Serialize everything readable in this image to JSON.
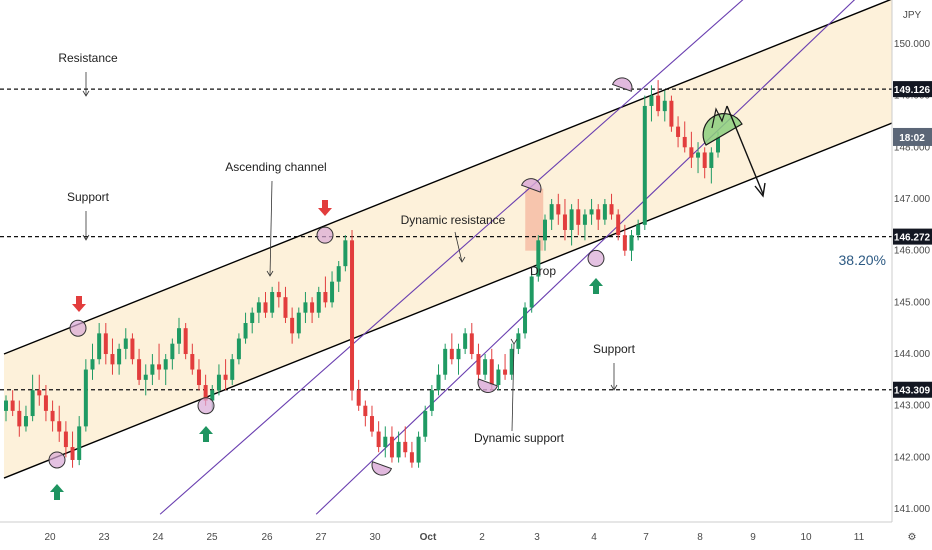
{
  "chart_data": {
    "type": "candlestick",
    "currency": "JPY",
    "x_ticks": [
      "20",
      "23",
      "24",
      "25",
      "26",
      "27",
      "30",
      "Oct",
      "2",
      "3",
      "4",
      "7",
      "8",
      "9",
      "10",
      "11"
    ],
    "y_ticks": [
      "150.000",
      "149.000",
      "148.000",
      "147.000",
      "146.000",
      "145.000",
      "144.000",
      "143.000",
      "142.000",
      "141.000"
    ],
    "ylim": [
      140.75,
      150.85
    ],
    "price_levels": [
      {
        "value": 149.126,
        "label": "149.126",
        "style": "dashed"
      },
      {
        "value": 146.272,
        "label": "146.272",
        "style": "dashed"
      },
      {
        "value": 143.309,
        "label": "143.309",
        "style": "dashed"
      }
    ],
    "current_time_tag": "18:02",
    "current_price": 148.2,
    "fib_label": "38.20%",
    "annotations": [
      "Resistance",
      "Support",
      "Ascending channel",
      "Dynamic resistance",
      "Drop",
      "Support",
      "Dynamic support"
    ],
    "channel": {
      "upper_start": [
        0,
        144.0
      ],
      "upper_end": [
        16,
        150.9
      ],
      "lower_start": [
        0,
        141.6
      ],
      "lower_end": [
        16,
        148.5
      ]
    },
    "dynamic_lines": {
      "resistance_start": [
        2.8,
        140.9
      ],
      "resistance_end": [
        13.3,
        150.9
      ],
      "support_start": [
        5.6,
        140.9
      ],
      "support_end": [
        15.3,
        150.9
      ]
    },
    "candles": [
      [
        142.9,
        143.2,
        142.7,
        143.1
      ],
      [
        143.1,
        143.3,
        142.8,
        142.9
      ],
      [
        142.9,
        143.1,
        142.4,
        142.6
      ],
      [
        142.6,
        143.0,
        142.5,
        142.8
      ],
      [
        142.8,
        143.6,
        142.7,
        143.3
      ],
      [
        143.3,
        143.6,
        143.0,
        143.2
      ],
      [
        143.2,
        143.4,
        142.7,
        142.9
      ],
      [
        142.9,
        143.1,
        142.5,
        142.7
      ],
      [
        142.7,
        143.0,
        142.3,
        142.5
      ],
      [
        142.5,
        142.7,
        142.0,
        142.2
      ],
      [
        142.2,
        142.5,
        141.8,
        141.95
      ],
      [
        141.95,
        142.8,
        141.85,
        142.6
      ],
      [
        142.6,
        143.9,
        142.5,
        143.7
      ],
      [
        143.7,
        144.2,
        143.5,
        143.9
      ],
      [
        143.9,
        144.6,
        143.8,
        144.4
      ],
      [
        144.4,
        144.6,
        143.8,
        144.0
      ],
      [
        144.0,
        144.3,
        143.6,
        143.8
      ],
      [
        143.8,
        144.2,
        143.6,
        144.1
      ],
      [
        144.1,
        144.5,
        143.9,
        144.3
      ],
      [
        144.3,
        144.4,
        143.8,
        143.9
      ],
      [
        143.9,
        144.1,
        143.4,
        143.5
      ],
      [
        143.5,
        143.8,
        143.2,
        143.6
      ],
      [
        143.6,
        144.0,
        143.4,
        143.8
      ],
      [
        143.8,
        144.2,
        143.5,
        143.7
      ],
      [
        143.7,
        144.0,
        143.4,
        143.9
      ],
      [
        143.9,
        144.3,
        143.7,
        144.2
      ],
      [
        144.2,
        144.7,
        144.0,
        144.5
      ],
      [
        144.5,
        144.6,
        143.9,
        144.0
      ],
      [
        144.0,
        144.2,
        143.6,
        143.7
      ],
      [
        143.7,
        143.9,
        143.3,
        143.4
      ],
      [
        143.4,
        143.6,
        143.0,
        143.1
      ],
      [
        143.1,
        143.4,
        142.9,
        143.3
      ],
      [
        143.3,
        143.8,
        143.2,
        143.6
      ],
      [
        143.6,
        143.9,
        143.3,
        143.5
      ],
      [
        143.5,
        144.0,
        143.4,
        143.9
      ],
      [
        143.9,
        144.4,
        143.8,
        144.3
      ],
      [
        144.3,
        144.8,
        144.2,
        144.6
      ],
      [
        144.6,
        144.9,
        144.4,
        144.8
      ],
      [
        144.8,
        145.1,
        144.6,
        145.0
      ],
      [
        145.0,
        145.2,
        144.7,
        144.8
      ],
      [
        144.8,
        145.3,
        144.7,
        145.2
      ],
      [
        145.2,
        145.4,
        144.9,
        145.1
      ],
      [
        145.1,
        145.3,
        144.6,
        144.7
      ],
      [
        144.7,
        144.9,
        144.2,
        144.4
      ],
      [
        144.4,
        144.9,
        144.3,
        144.8
      ],
      [
        144.8,
        145.2,
        144.6,
        145.0
      ],
      [
        145.0,
        145.1,
        144.6,
        144.8
      ],
      [
        144.8,
        145.3,
        144.7,
        145.2
      ],
      [
        145.2,
        145.5,
        144.9,
        145.0
      ],
      [
        145.0,
        145.6,
        144.9,
        145.4
      ],
      [
        145.4,
        145.8,
        145.2,
        145.7
      ],
      [
        145.7,
        146.3,
        145.6,
        146.2
      ],
      [
        146.2,
        146.4,
        143.1,
        143.3
      ],
      [
        143.3,
        143.5,
        142.9,
        143.0
      ],
      [
        143.0,
        143.1,
        142.6,
        142.8
      ],
      [
        142.8,
        143.0,
        142.4,
        142.5
      ],
      [
        142.5,
        142.7,
        142.1,
        142.2
      ],
      [
        142.2,
        142.6,
        142.0,
        142.4
      ],
      [
        142.4,
        142.6,
        141.9,
        142.0
      ],
      [
        142.0,
        142.5,
        141.9,
        142.3
      ],
      [
        142.3,
        142.6,
        142.0,
        142.1
      ],
      [
        142.1,
        142.3,
        141.8,
        141.9
      ],
      [
        141.9,
        142.5,
        141.8,
        142.4
      ],
      [
        142.4,
        143.0,
        142.3,
        142.9
      ],
      [
        142.9,
        143.4,
        142.8,
        143.3
      ],
      [
        143.3,
        143.8,
        143.2,
        143.6
      ],
      [
        143.6,
        144.2,
        143.5,
        144.1
      ],
      [
        144.1,
        144.4,
        143.8,
        143.9
      ],
      [
        143.9,
        144.2,
        143.6,
        144.1
      ],
      [
        144.1,
        144.5,
        144.0,
        144.4
      ],
      [
        144.4,
        144.6,
        143.9,
        144.0
      ],
      [
        144.0,
        144.2,
        143.5,
        143.6
      ],
      [
        143.6,
        144.0,
        143.5,
        143.9
      ],
      [
        143.9,
        144.1,
        143.3,
        143.4
      ],
      [
        143.4,
        143.8,
        143.3,
        143.7
      ],
      [
        143.7,
        144.0,
        143.5,
        143.6
      ],
      [
        143.6,
        144.2,
        143.5,
        144.1
      ],
      [
        144.1,
        144.5,
        144.0,
        144.4
      ],
      [
        144.4,
        145.0,
        144.3,
        144.9
      ],
      [
        144.9,
        145.6,
        144.8,
        145.5
      ],
      [
        145.5,
        146.3,
        145.4,
        146.2
      ],
      [
        146.2,
        146.7,
        146.0,
        146.6
      ],
      [
        146.6,
        147.0,
        146.4,
        146.9
      ],
      [
        146.9,
        147.1,
        146.5,
        146.7
      ],
      [
        146.7,
        147.0,
        146.2,
        146.4
      ],
      [
        146.4,
        146.9,
        146.1,
        146.8
      ],
      [
        146.8,
        147.0,
        146.3,
        146.5
      ],
      [
        146.5,
        146.8,
        146.2,
        146.7
      ],
      [
        146.7,
        147.0,
        146.5,
        146.8
      ],
      [
        146.8,
        146.9,
        146.4,
        146.6
      ],
      [
        146.6,
        147.0,
        146.5,
        146.9
      ],
      [
        146.9,
        147.1,
        146.6,
        146.7
      ],
      [
        146.7,
        146.8,
        146.2,
        146.3
      ],
      [
        146.3,
        146.5,
        145.9,
        146.0
      ],
      [
        146.0,
        146.4,
        145.8,
        146.3
      ],
      [
        146.3,
        146.6,
        146.2,
        146.5
      ],
      [
        146.5,
        149.0,
        146.4,
        148.8
      ],
      [
        148.8,
        149.2,
        148.5,
        149.0
      ],
      [
        149.0,
        149.3,
        148.6,
        148.7
      ],
      [
        148.7,
        149.1,
        148.5,
        148.9
      ],
      [
        148.9,
        149.0,
        148.3,
        148.4
      ],
      [
        148.4,
        148.6,
        148.0,
        148.2
      ],
      [
        148.2,
        148.5,
        147.9,
        148.0
      ],
      [
        148.0,
        148.3,
        147.6,
        147.8
      ],
      [
        147.8,
        148.1,
        147.5,
        147.9
      ],
      [
        147.9,
        148.0,
        147.4,
        147.6
      ],
      [
        147.6,
        148.0,
        147.3,
        147.9
      ],
      [
        147.9,
        148.3,
        147.8,
        148.2
      ]
    ]
  }
}
